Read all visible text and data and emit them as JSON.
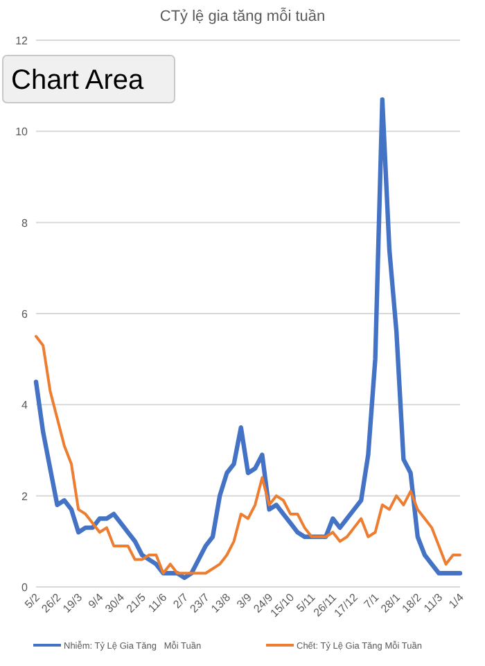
{
  "chart_data": {
    "type": "line",
    "title": "CTỷ lệ gia tăng mỗi tuần",
    "categories": [
      "5/2",
      null,
      null,
      "26/2",
      null,
      null,
      "19/3",
      null,
      null,
      "9/4",
      null,
      null,
      "30/4",
      null,
      null,
      "21/5",
      null,
      null,
      "11/6",
      null,
      null,
      "2/7",
      null,
      null,
      "23/7",
      null,
      null,
      "13/8",
      null,
      null,
      "3/9",
      null,
      null,
      "24/9",
      null,
      null,
      "15/10",
      null,
      null,
      "5/11",
      null,
      null,
      "26/11",
      null,
      null,
      "17/12",
      null,
      null,
      "7/1",
      null,
      null,
      "28/1",
      null,
      null,
      "18/2",
      null,
      null,
      "11/3",
      null,
      null,
      "1/4"
    ],
    "series": [
      {
        "name": "Nhiễm: Tỷ Lệ Gia Tăng   Mỗi Tuần",
        "color": "#4472c4",
        "values": [
          4.5,
          3.4,
          2.6,
          1.8,
          1.9,
          1.7,
          1.2,
          1.3,
          1.3,
          1.5,
          1.5,
          1.6,
          1.4,
          1.2,
          1.0,
          0.7,
          0.6,
          0.5,
          0.3,
          0.3,
          0.3,
          0.2,
          0.3,
          0.6,
          0.9,
          1.1,
          2.0,
          2.5,
          2.7,
          3.5,
          2.5,
          2.6,
          2.9,
          1.7,
          1.8,
          1.6,
          1.4,
          1.2,
          1.1,
          1.1,
          1.1,
          1.1,
          1.5,
          1.3,
          1.5,
          1.7,
          1.9,
          2.9,
          5.0,
          10.7,
          7.4,
          5.6,
          2.8,
          2.5,
          1.1,
          0.7,
          0.5,
          0.3,
          0.3,
          0.3,
          0.3
        ]
      },
      {
        "name": "Chết: Tỷ Lệ Gia Tăng Mỗi Tuần",
        "color": "#ed7d31",
        "values": [
          5.5,
          5.3,
          4.3,
          3.7,
          3.1,
          2.7,
          1.7,
          1.6,
          1.4,
          1.2,
          1.3,
          0.9,
          0.9,
          0.9,
          0.6,
          0.6,
          0.7,
          0.7,
          0.3,
          0.5,
          0.3,
          0.3,
          0.3,
          0.3,
          0.3,
          0.4,
          0.5,
          0.7,
          1.0,
          1.6,
          1.5,
          1.8,
          2.4,
          1.8,
          2.0,
          1.9,
          1.6,
          1.6,
          1.3,
          1.1,
          1.1,
          1.1,
          1.2,
          1.0,
          1.1,
          1.3,
          1.5,
          1.1,
          1.2,
          1.8,
          1.7,
          2.0,
          1.8,
          2.1,
          1.7,
          1.5,
          1.3,
          0.9,
          0.5,
          0.7,
          0.7
        ]
      }
    ],
    "ylim": [
      0,
      12
    ],
    "yticks": [
      0,
      2,
      4,
      6,
      8,
      10,
      12
    ],
    "grid": "y",
    "legend": "bottom",
    "line_style": "solid",
    "marker": "none",
    "annotations": [
      "Chart Area"
    ]
  }
}
